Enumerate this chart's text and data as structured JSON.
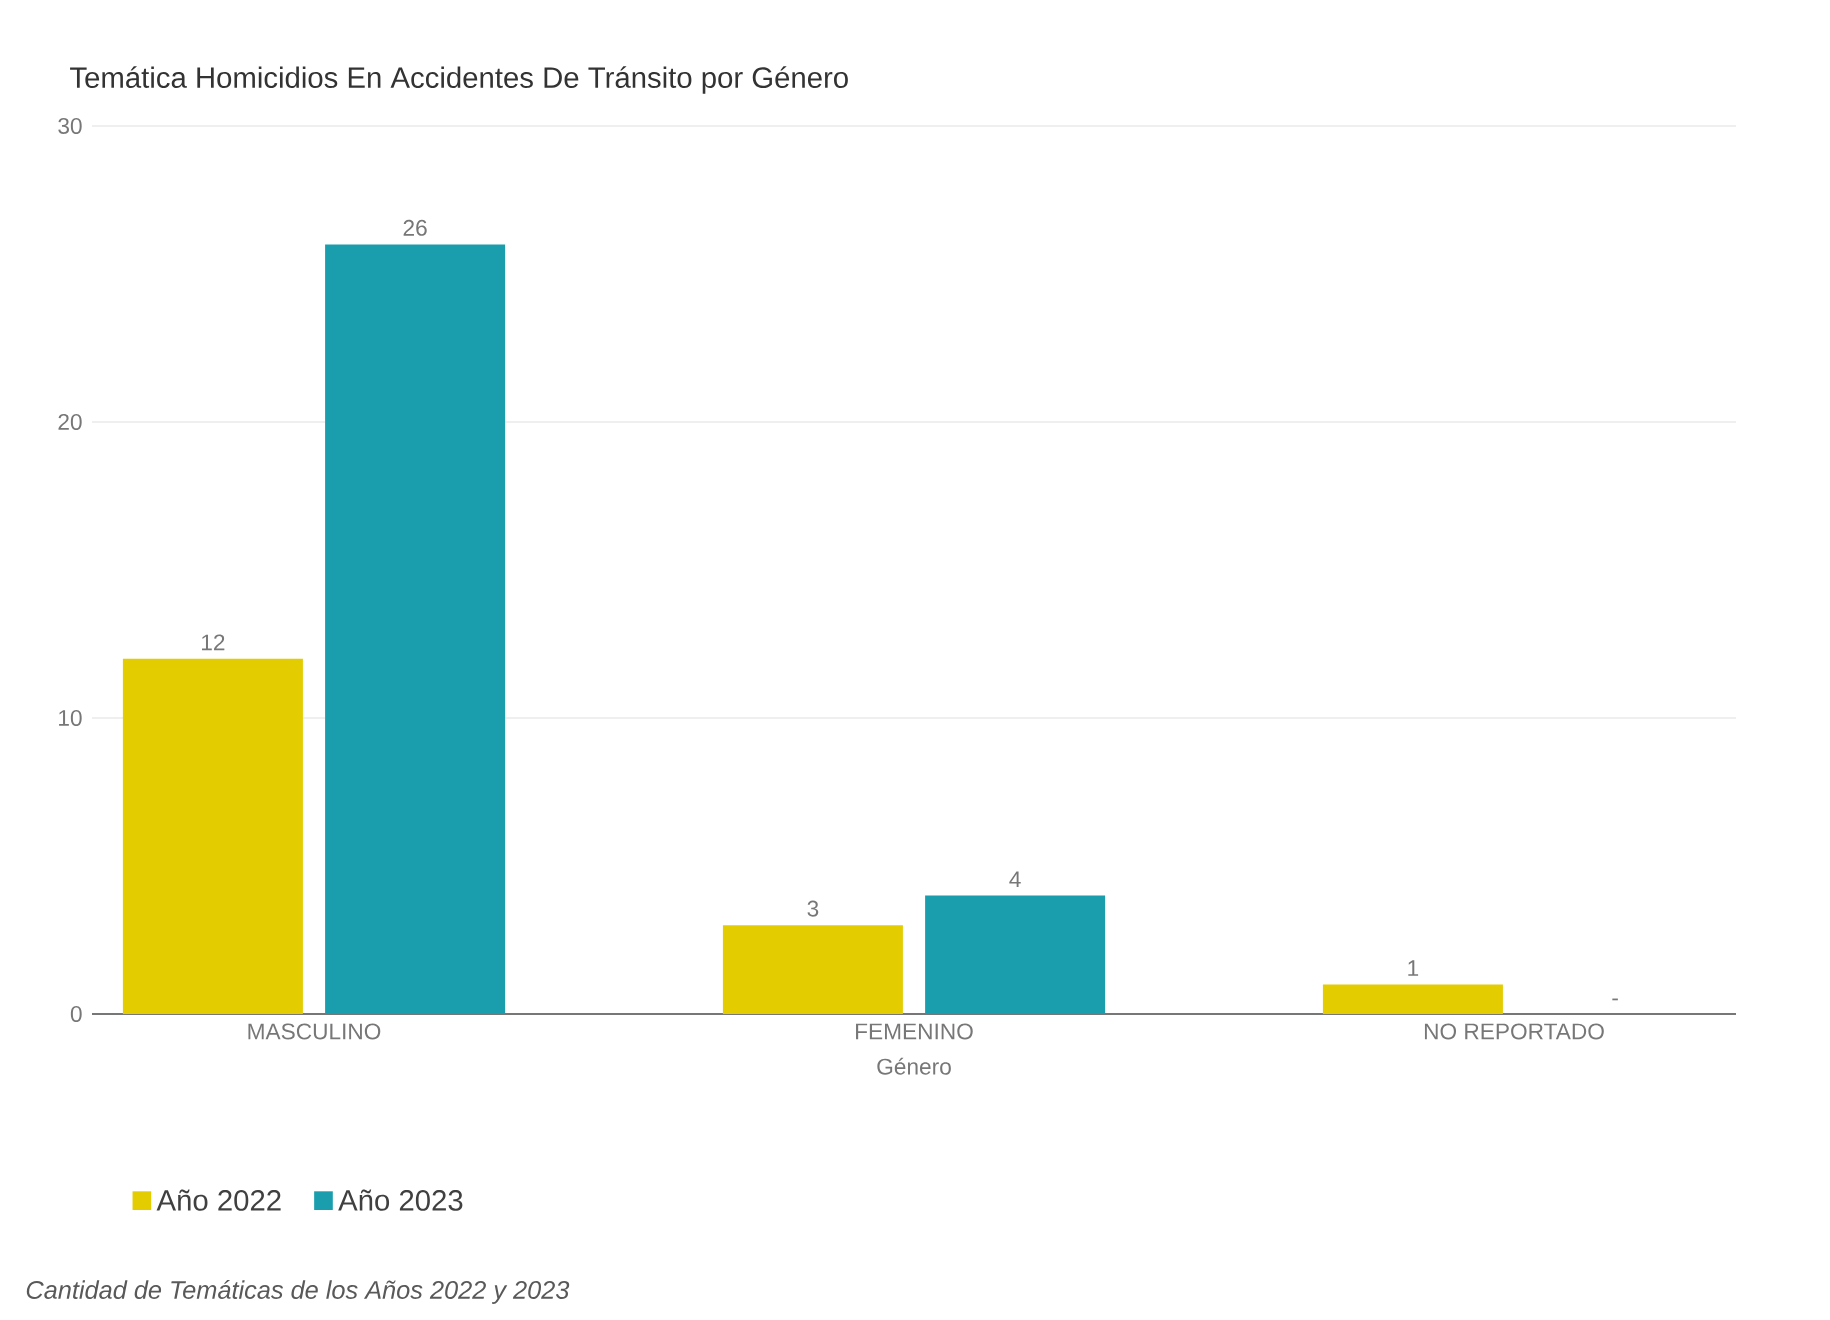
{
  "chart_data": {
    "type": "bar",
    "title": "Temática Homicidios En Accidentes De Tránsito por Género",
    "categories": [
      "MASCULINO",
      "FEMENINO",
      "NO REPORTADO"
    ],
    "xlabel": "Género",
    "series": [
      {
        "name": "Año 2022",
        "color": "#e3cc00",
        "values": [
          12,
          3,
          1
        ],
        "value_labels": [
          "12",
          "3",
          "1"
        ]
      },
      {
        "name": "Año 2023",
        "color": "#1a9eae",
        "values": [
          26,
          4,
          null
        ],
        "value_labels": [
          "26",
          "4",
          "-"
        ]
      }
    ],
    "ylim": [
      0,
      30
    ],
    "yticks": [
      0,
      10,
      20,
      30
    ],
    "grid": "y",
    "legend": "bottom left",
    "annotations": [
      "Cantidad de Temáticas de los Años 2022 y 2023"
    ]
  }
}
